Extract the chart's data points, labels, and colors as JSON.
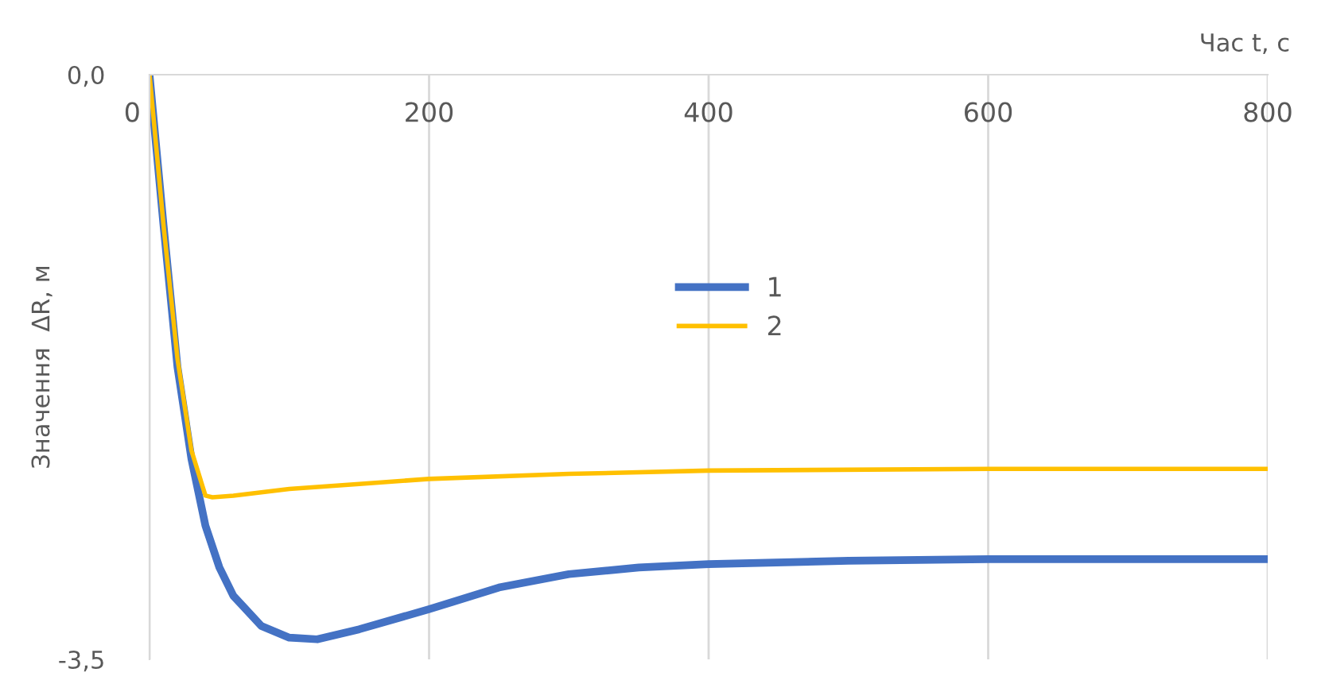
{
  "chart_data": {
    "type": "line",
    "xlabel": "Час t, с",
    "ylabel": "Значення  ΔR, м",
    "xlim": [
      0,
      800
    ],
    "xticks": [
      0,
      200,
      400,
      600,
      800
    ],
    "ylim": [
      -3.5,
      0
    ],
    "yticks": [
      {
        "value": 0,
        "label": "0,0"
      },
      {
        "value": -3.5,
        "label": "-3,5"
      }
    ],
    "grid": "x",
    "legend": "center",
    "marker": "none",
    "line_style": "solid",
    "series": [
      {
        "name": "1",
        "color": "#4472c4",
        "x": [
          0,
          5,
          10,
          20,
          30,
          40,
          50,
          60,
          80,
          100,
          120,
          150,
          200,
          250,
          300,
          350,
          400,
          500,
          600,
          700,
          800
        ],
        "values": [
          0,
          -0.45,
          -0.9,
          -1.75,
          -2.3,
          -2.7,
          -2.95,
          -3.12,
          -3.3,
          -3.37,
          -3.38,
          -3.32,
          -3.2,
          -3.07,
          -2.99,
          -2.95,
          -2.93,
          -2.91,
          -2.9,
          -2.9,
          -2.9
        ]
      },
      {
        "name": "2",
        "color": "#ffc000",
        "x": [
          0,
          5,
          10,
          20,
          30,
          40,
          45,
          60,
          100,
          150,
          200,
          300,
          400,
          600,
          800
        ],
        "values": [
          0,
          -0.45,
          -0.9,
          -1.7,
          -2.25,
          -2.52,
          -2.53,
          -2.52,
          -2.48,
          -2.45,
          -2.42,
          -2.39,
          -2.37,
          -2.36,
          -2.36
        ]
      }
    ]
  }
}
